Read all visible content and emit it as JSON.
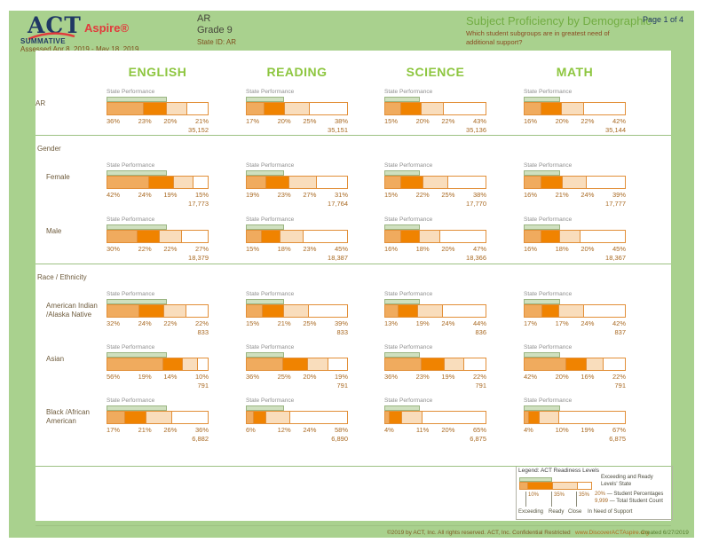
{
  "page": {
    "page_label": "Page 1 of 4"
  },
  "header": {
    "logo_act": "ACT",
    "logo_aspire": "Aspire®",
    "program": "SUMMATIVE",
    "assessed": "Assessed Apr 8, 2019 - May 18, 2019",
    "org": "AR",
    "grade": "Grade 9",
    "state_id": "State ID: AR",
    "title": "Subject Proficiency by Demographic",
    "subtitle": "Which student subgroups are in greatest need of additional support?"
  },
  "subjects": [
    "ENGLISH",
    "READING",
    "SCIENCE",
    "MATH"
  ],
  "chart_data": {
    "type": "bar",
    "stacked": true,
    "orientation": "horizontal",
    "levels": [
      "Exceeding",
      "Ready",
      "Close",
      "In Need of Support"
    ],
    "level_colors": [
      "#f0ab5e",
      "#f08300",
      "#f9ddbc",
      "#ffffff"
    ],
    "state_performance_label": "State Performance",
    "state_performance_pct": [
      59,
      37,
      35,
      36
    ],
    "sections": [
      {
        "title": "",
        "rows": [
          {
            "label": "AR",
            "charts": [
              {
                "subject": "ENGLISH",
                "percents": [
                  36,
                  23,
                  20,
                  21
                ],
                "count": "35,152"
              },
              {
                "subject": "READING",
                "percents": [
                  17,
                  20,
                  25,
                  38
                ],
                "count": "35,151"
              },
              {
                "subject": "SCIENCE",
                "percents": [
                  15,
                  20,
                  22,
                  43
                ],
                "count": "35,136"
              },
              {
                "subject": "MATH",
                "percents": [
                  16,
                  20,
                  22,
                  42
                ],
                "count": "35,144"
              }
            ]
          }
        ]
      },
      {
        "title": "Gender",
        "rows": [
          {
            "label": "Female",
            "charts": [
              {
                "subject": "ENGLISH",
                "percents": [
                  42,
                  24,
                  19,
                  15
                ],
                "count": "17,773"
              },
              {
                "subject": "READING",
                "percents": [
                  19,
                  23,
                  27,
                  31
                ],
                "count": "17,764"
              },
              {
                "subject": "SCIENCE",
                "percents": [
                  15,
                  22,
                  25,
                  38
                ],
                "count": "17,770"
              },
              {
                "subject": "MATH",
                "percents": [
                  16,
                  21,
                  24,
                  39
                ],
                "count": "17,777"
              }
            ]
          },
          {
            "label": "Male",
            "charts": [
              {
                "subject": "ENGLISH",
                "percents": [
                  30,
                  22,
                  22,
                  27
                ],
                "count": "18,379"
              },
              {
                "subject": "READING",
                "percents": [
                  15,
                  18,
                  23,
                  45
                ],
                "count": "18,387"
              },
              {
                "subject": "SCIENCE",
                "percents": [
                  16,
                  18,
                  20,
                  47
                ],
                "count": "18,366"
              },
              {
                "subject": "MATH",
                "percents": [
                  16,
                  18,
                  20,
                  45
                ],
                "count": "18,367"
              }
            ]
          }
        ]
      },
      {
        "title": "Race / Ethnicity",
        "rows": [
          {
            "label": "American Indian /Alaska Native",
            "charts": [
              {
                "subject": "ENGLISH",
                "percents": [
                  32,
                  24,
                  22,
                  22
                ],
                "count": "833"
              },
              {
                "subject": "READING",
                "percents": [
                  15,
                  21,
                  25,
                  39
                ],
                "count": "833"
              },
              {
                "subject": "SCIENCE",
                "percents": [
                  13,
                  19,
                  24,
                  44
                ],
                "count": "836"
              },
              {
                "subject": "MATH",
                "percents": [
                  17,
                  17,
                  24,
                  42
                ],
                "count": "837"
              }
            ]
          },
          {
            "label": "Asian",
            "charts": [
              {
                "subject": "ENGLISH",
                "percents": [
                  56,
                  19,
                  14,
                  10
                ],
                "count": "791"
              },
              {
                "subject": "READING",
                "percents": [
                  36,
                  25,
                  20,
                  19
                ],
                "count": "791"
              },
              {
                "subject": "SCIENCE",
                "percents": [
                  36,
                  23,
                  19,
                  22
                ],
                "count": "791"
              },
              {
                "subject": "MATH",
                "percents": [
                  42,
                  20,
                  16,
                  22
                ],
                "count": "791"
              }
            ]
          },
          {
            "label": "Black /African American",
            "charts": [
              {
                "subject": "ENGLISH",
                "percents": [
                  17,
                  21,
                  26,
                  36
                ],
                "count": "6,882"
              },
              {
                "subject": "READING",
                "percents": [
                  6,
                  12,
                  24,
                  58
                ],
                "count": "6,890"
              },
              {
                "subject": "SCIENCE",
                "percents": [
                  4,
                  11,
                  20,
                  65
                ],
                "count": "6,875"
              },
              {
                "subject": "MATH",
                "percents": [
                  4,
                  10,
                  19,
                  67
                ],
                "count": "6,875"
              }
            ]
          }
        ]
      }
    ]
  },
  "legend": {
    "title": "Legend: ACT Readiness Levels",
    "overlay_label": "Exceeding and Ready Levels' State",
    "sample_segments": [
      10,
      35,
      35,
      20
    ],
    "sample_percents": [
      "10%",
      "35%",
      "35%"
    ],
    "student_pct": "20%",
    "student_pct_label": "Student Percentages",
    "total_count": "9,999",
    "total_count_label": "Total Student Count",
    "levels": [
      "Exceeding",
      "Ready",
      "Close",
      "In Need of Support"
    ]
  },
  "footer": {
    "copyright": "©2019 by ACT, Inc. All rights reserved.",
    "confidential": "ACT, Inc. Confidential Restricted",
    "url": "www.DiscoverACTAspire.org",
    "created": "Created 6/27/2019"
  }
}
